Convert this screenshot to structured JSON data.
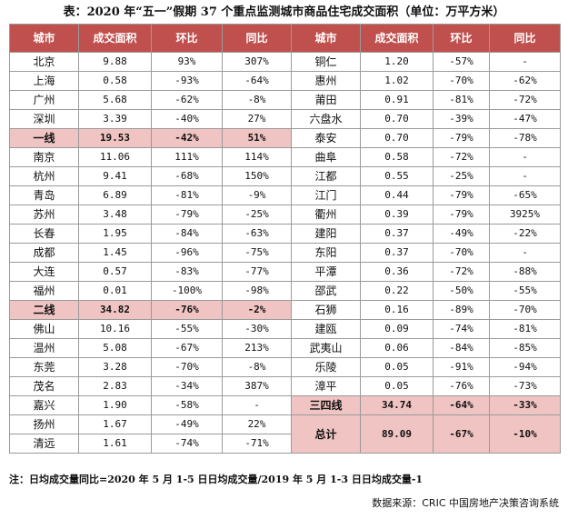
{
  "title": "表：2020 年“五一”假期 37 个重点监测城市商品住宅成交面积（单位：万平方米）",
  "headers": [
    "城市",
    "成交面积",
    "环比",
    "同比",
    "城市",
    "成交面积",
    "环比",
    "同比"
  ],
  "left": [
    [
      "北京",
      "9.88",
      "93%",
      "307%"
    ],
    [
      "上海",
      "0.58",
      "-93%",
      "-64%"
    ],
    [
      "广州",
      "5.68",
      "-62%",
      "-8%"
    ],
    [
      "深圳",
      "3.39",
      "-40%",
      "27%"
    ],
    [
      "一线",
      "19.53",
      "-42%",
      "51%"
    ],
    [
      "南京",
      "11.06",
      "111%",
      "114%"
    ],
    [
      "杭州",
      "9.41",
      "-68%",
      "150%"
    ],
    [
      "青岛",
      "6.89",
      "-81%",
      "-9%"
    ],
    [
      "苏州",
      "3.48",
      "-79%",
      "-25%"
    ],
    [
      "长春",
      "1.95",
      "-84%",
      "-63%"
    ],
    [
      "成都",
      "1.45",
      "-96%",
      "-75%"
    ],
    [
      "大连",
      "0.57",
      "-83%",
      "-77%"
    ],
    [
      "福州",
      "0.01",
      "-100%",
      "-98%"
    ],
    [
      "二线",
      "34.82",
      "-76%",
      "-2%"
    ],
    [
      "佛山",
      "10.16",
      "-55%",
      "-30%"
    ],
    [
      "温州",
      "5.08",
      "-67%",
      "213%"
    ],
    [
      "东莞",
      "3.28",
      "-70%",
      "-8%"
    ],
    [
      "茂名",
      "2.83",
      "-34%",
      "387%"
    ],
    [
      "嘉兴",
      "1.90",
      "-58%",
      "-"
    ],
    [
      "扬州",
      "1.67",
      "-49%",
      "22%"
    ],
    [
      "清远",
      "1.61",
      "-74%",
      "-71%"
    ]
  ],
  "right": [
    [
      "铜仁",
      "1.20",
      "-57%",
      "-"
    ],
    [
      "惠州",
      "1.02",
      "-70%",
      "-62%"
    ],
    [
      "莆田",
      "0.91",
      "-81%",
      "-72%"
    ],
    [
      "六盘水",
      "0.70",
      "-39%",
      "-47%"
    ],
    [
      "泰安",
      "0.70",
      "-79%",
      "-78%"
    ],
    [
      "曲阜",
      "0.58",
      "-72%",
      "-"
    ],
    [
      "江都",
      "0.55",
      "-25%",
      "-"
    ],
    [
      "江门",
      "0.44",
      "-79%",
      "-65%"
    ],
    [
      "衢州",
      "0.39",
      "-79%",
      "3925%"
    ],
    [
      "建阳",
      "0.37",
      "-49%",
      "-22%"
    ],
    [
      "东阳",
      "0.37",
      "-70%",
      "-"
    ],
    [
      "平潭",
      "0.36",
      "-72%",
      "-88%"
    ],
    [
      "邵武",
      "0.22",
      "-50%",
      "-55%"
    ],
    [
      "石狮",
      "0.16",
      "-89%",
      "-70%"
    ],
    [
      "建瓯",
      "0.09",
      "-74%",
      "-81%"
    ],
    [
      "武夷山",
      "0.06",
      "-84%",
      "-85%"
    ],
    [
      "乐陵",
      "0.05",
      "-91%",
      "-94%"
    ],
    [
      "漳平",
      "0.05",
      "-76%",
      "-73%"
    ],
    [
      "三四线",
      "34.74",
      "-64%",
      "-33%"
    ]
  ],
  "total": [
    "总计",
    "89.09",
    "-67%",
    "-10%"
  ],
  "note": "注：日均成交量同比=2020 年 5 月 1-5 日日均成交量/2019 年 5 月 1-3 日日均成交量-1",
  "source": "数据来源：CRIC 中国房地产决策咨询系统"
}
